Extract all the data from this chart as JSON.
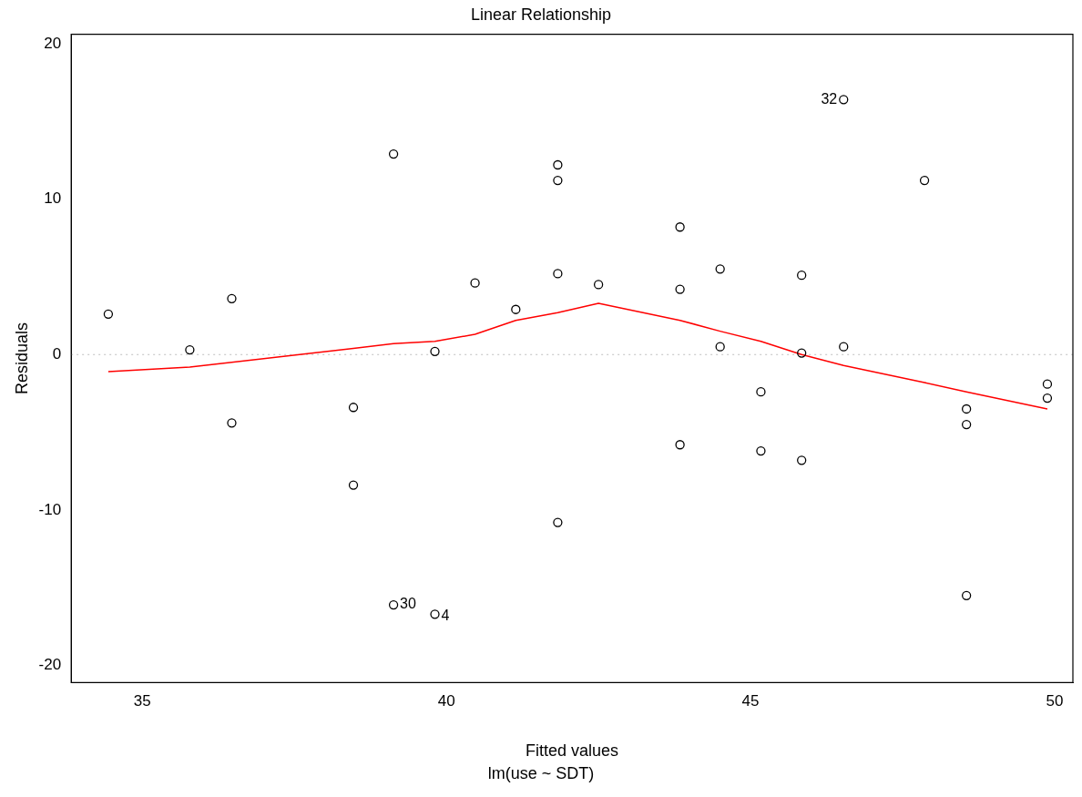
{
  "chart_data": {
    "type": "scatter",
    "title": "Linear Relationship",
    "subtitle": "lm(use ~ SDT)",
    "xlabel": "Fitted values",
    "ylabel": "Residuals",
    "xlim": [
      33.83,
      50.3
    ],
    "ylim": [
      -21.1,
      20.6
    ],
    "xticks": [
      35,
      40,
      45,
      50
    ],
    "yticks": [
      -20,
      -10,
      0,
      10,
      20
    ],
    "grid": false,
    "legend": false,
    "marker": "circle",
    "series": [
      {
        "type": "scatter",
        "color": "#000000",
        "x": [
          34.44,
          35.78,
          36.47,
          36.47,
          38.47,
          38.47,
          39.13,
          39.13,
          39.81,
          39.81,
          40.47,
          41.14,
          41.83,
          41.83,
          41.83,
          41.83,
          42.5,
          43.84,
          43.84,
          43.84,
          44.5,
          44.5,
          45.17,
          45.17,
          45.84,
          45.84,
          45.84,
          46.53,
          46.53,
          47.86,
          48.55,
          48.55,
          48.55,
          49.88,
          49.88
        ],
        "values": [
          2.6,
          0.3,
          3.6,
          -4.4,
          -3.4,
          -8.4,
          12.9,
          -16.1,
          0.2,
          -16.7,
          4.6,
          2.9,
          12.2,
          11.2,
          5.2,
          -10.8,
          4.5,
          8.2,
          4.2,
          -5.8,
          5.5,
          0.5,
          -2.4,
          -6.2,
          5.1,
          0.1,
          -6.8,
          16.4,
          0.5,
          11.2,
          -3.5,
          -4.5,
          -15.5,
          -1.9,
          -2.8
        ]
      },
      {
        "type": "line",
        "color": "#ff0000",
        "marker": "none",
        "x": [
          34.44,
          35.78,
          36.47,
          38.47,
          39.13,
          39.81,
          40.47,
          41.14,
          41.83,
          42.5,
          43.84,
          44.5,
          45.17,
          45.84,
          46.53,
          47.86,
          48.55,
          49.88
        ],
        "values": [
          -1.1,
          -0.8,
          -0.5,
          0.4,
          0.7,
          0.85,
          1.3,
          2.2,
          2.7,
          3.3,
          2.2,
          1.5,
          0.85,
          0,
          -0.7,
          -1.8,
          -2.4,
          -3.5
        ]
      }
    ],
    "ref_lines": [
      {
        "axis": "y",
        "value": 0,
        "color": "#bebebe",
        "line_style": "dotted"
      }
    ],
    "annotations": [
      {
        "text": "32",
        "x": 46.53,
        "y": 16.4
      },
      {
        "text": "30",
        "x": 39.13,
        "y": -16.1
      },
      {
        "text": "4",
        "x": 39.81,
        "y": -16.7
      }
    ]
  }
}
